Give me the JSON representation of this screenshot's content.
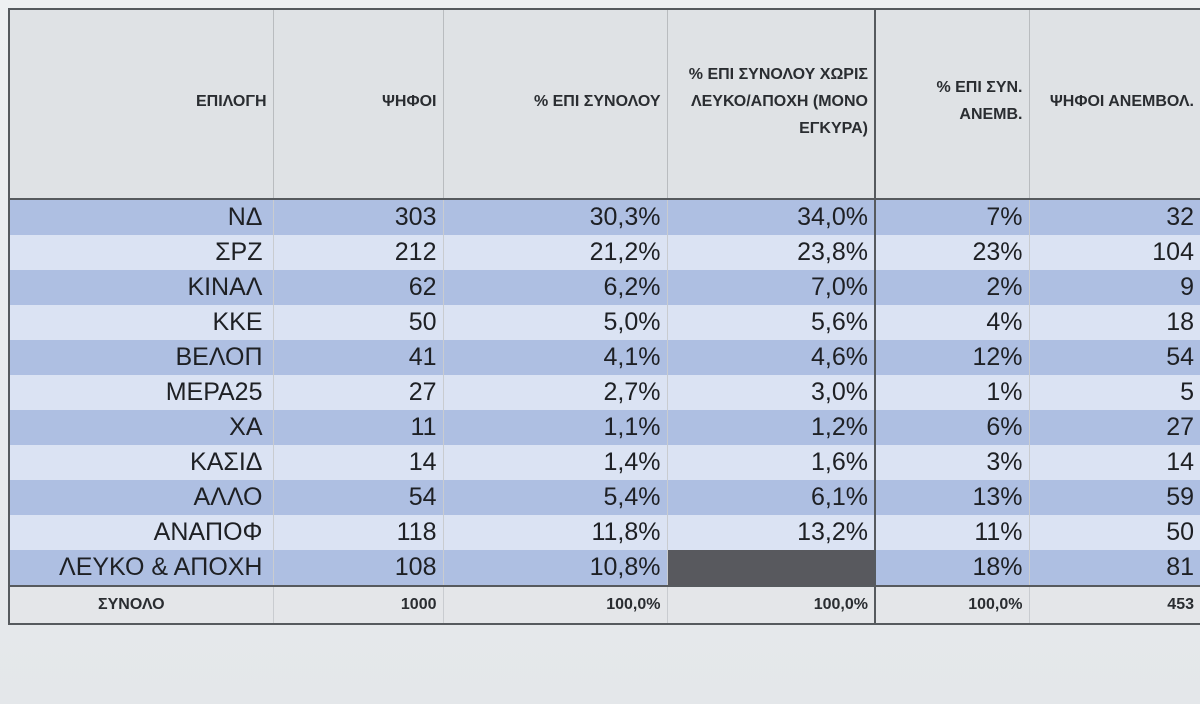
{
  "table": {
    "headers": [
      "ΕΠΙΛΟΓΗ",
      "ΨΗΦΟΙ",
      "% ΕΠΙ ΣΥΝΟΛΟΥ",
      "% ΕΠΙ ΣΥΝΟΛΟΥ ΧΩΡΙΣ ΛΕΥΚΟ/ΑΠΟΧΗ (ΜΟΝΟ ΕΓΚΥΡΑ)",
      "% ΕΠΙ ΣΥΝ. ΑΝΕΜΒ.",
      "ΨΗΦΟΙ ΑΝΕΜΒΟΛ."
    ],
    "rows": [
      [
        "ΝΔ",
        "303",
        "30,3%",
        "34,0%",
        "7%",
        "32"
      ],
      [
        "ΣΡΖ",
        "212",
        "21,2%",
        "23,8%",
        "23%",
        "104"
      ],
      [
        "ΚΙΝΑΛ",
        "62",
        "6,2%",
        "7,0%",
        "2%",
        "9"
      ],
      [
        "ΚΚΕ",
        "50",
        "5,0%",
        "5,6%",
        "4%",
        "18"
      ],
      [
        "ΒΕΛΟΠ",
        "41",
        "4,1%",
        "4,6%",
        "12%",
        "54"
      ],
      [
        "ΜΕΡΑ25",
        "27",
        "2,7%",
        "3,0%",
        "1%",
        "5"
      ],
      [
        "ΧΑ",
        "11",
        "1,1%",
        "1,2%",
        "6%",
        "27"
      ],
      [
        "ΚΑΣΙΔ",
        "14",
        "1,4%",
        "1,6%",
        "3%",
        "14"
      ],
      [
        "ΑΛΛΟ",
        "54",
        "5,4%",
        "6,1%",
        "13%",
        "59"
      ],
      [
        "ΑΝΑΠΟΦ",
        "118",
        "11,8%",
        "13,2%",
        "11%",
        "50"
      ],
      [
        "ΛΕΥΚΟ & ΑΠΟΧΗ",
        "108",
        "10,8%",
        "",
        "18%",
        "81"
      ]
    ],
    "total": [
      "ΣΥΝΟΛΟ",
      "1000",
      "100,0%",
      "100,0%",
      "100,0%",
      "453"
    ]
  },
  "colors": {
    "row_dark": "#aebfe2",
    "row_light": "#dbe3f3",
    "blank_cell": "#58595e",
    "header_bg": "#dfe2e5"
  }
}
